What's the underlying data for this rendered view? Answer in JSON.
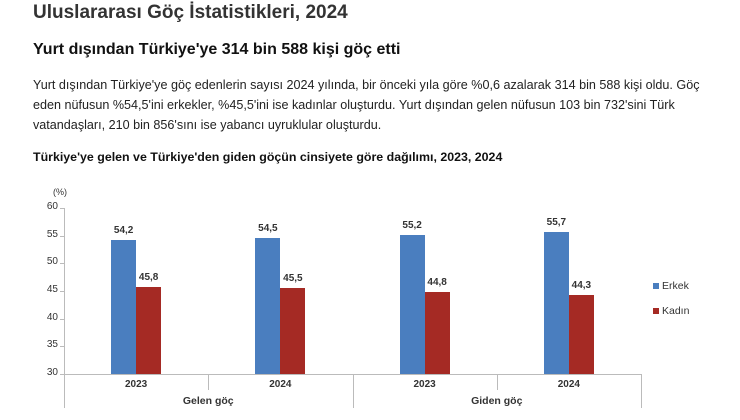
{
  "page": {
    "title": "Uluslararası Göç İstatistikleri, 2024",
    "headline": "Yurt dışından Türkiye'ye 314 bin 588 kişi göç etti",
    "paragraph": "Yurt dışından Türkiye'ye göç edenlerin sayısı 2024 yılında, bir önceki yıla göre %0,6 azalarak 314 bin 588 kişi oldu. Göç eden nüfusun %54,5'ini erkekler, %45,5'ini ise kadınlar oluşturdu. Yurt dışından gelen nüfusun 103 bin 732'sini Türk vatandaşları, 210 bin 856'sını ise yabancı uyruklular oluşturdu."
  },
  "chart_data": {
    "type": "bar",
    "title": "Türkiye'ye gelen ve Türkiye'den giden göçün cinsiyete göre dağılımı, 2023, 2024",
    "ylabel": "(%)",
    "xlabel": "",
    "ylim": [
      30,
      60
    ],
    "yticks": [
      "60",
      "55",
      "50",
      "45",
      "40",
      "35",
      "30"
    ],
    "groups": [
      "Gelen göç",
      "Giden göç"
    ],
    "categories": [
      "2023",
      "2024",
      "2023",
      "2024"
    ],
    "series": [
      {
        "name": "Erkek",
        "color": "#4a7ebf",
        "values": [
          54.2,
          54.5,
          55.2,
          55.7
        ],
        "labels": [
          "54,2",
          "54,5",
          "55,2",
          "55,7"
        ]
      },
      {
        "name": "Kadın",
        "color": "#a52a24",
        "values": [
          45.8,
          45.5,
          44.8,
          44.3
        ],
        "labels": [
          "45,8",
          "45,5",
          "44,8",
          "44,3"
        ]
      }
    ],
    "grid": false,
    "legend_position": "right"
  }
}
